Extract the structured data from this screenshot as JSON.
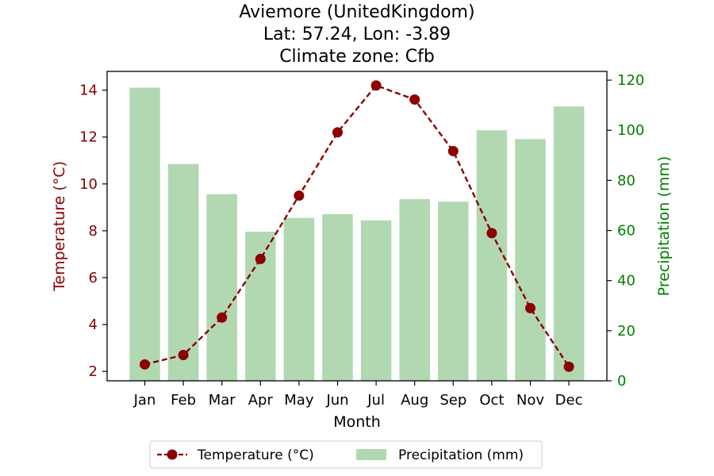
{
  "chart_data": {
    "type": "bar+line",
    "title_lines": [
      "Aviemore (UnitedKingdom)",
      "Lat: 57.24, Lon: -3.89",
      "Climate zone: Cfb"
    ],
    "xlabel": "Month",
    "ylabel_left": "Temperature (°C)",
    "ylabel_right": "Precipitation (mm)",
    "categories": [
      "Jan",
      "Feb",
      "Mar",
      "Apr",
      "May",
      "Jun",
      "Jul",
      "Aug",
      "Sep",
      "Oct",
      "Nov",
      "Dec"
    ],
    "series": [
      {
        "name": "Temperature (°C)",
        "axis": "left",
        "kind": "line",
        "color": "#8b0000",
        "values": [
          2.3,
          2.7,
          4.3,
          6.8,
          9.5,
          12.2,
          14.2,
          13.6,
          11.4,
          7.9,
          4.7,
          2.2
        ]
      },
      {
        "name": "Precipitation (mm)",
        "axis": "right",
        "kind": "bar",
        "color": "#b2d8b2",
        "values": [
          117,
          86.5,
          74.5,
          59.5,
          65,
          66.5,
          64,
          72.5,
          71.5,
          100,
          96.5,
          109.5
        ]
      }
    ],
    "ylim_left": [
      1.6,
      14.8
    ],
    "yticks_left": [
      "2",
      "4",
      "6",
      "8",
      "10",
      "12",
      "14"
    ],
    "ylim_right": [
      0,
      123.5
    ],
    "yticks_right": [
      "0",
      "20",
      "40",
      "60",
      "80",
      "100",
      "120"
    ],
    "left_axis_color": "#8b0000",
    "right_axis_color": "#008000",
    "legend_position": "bottom-center",
    "grid": false
  }
}
